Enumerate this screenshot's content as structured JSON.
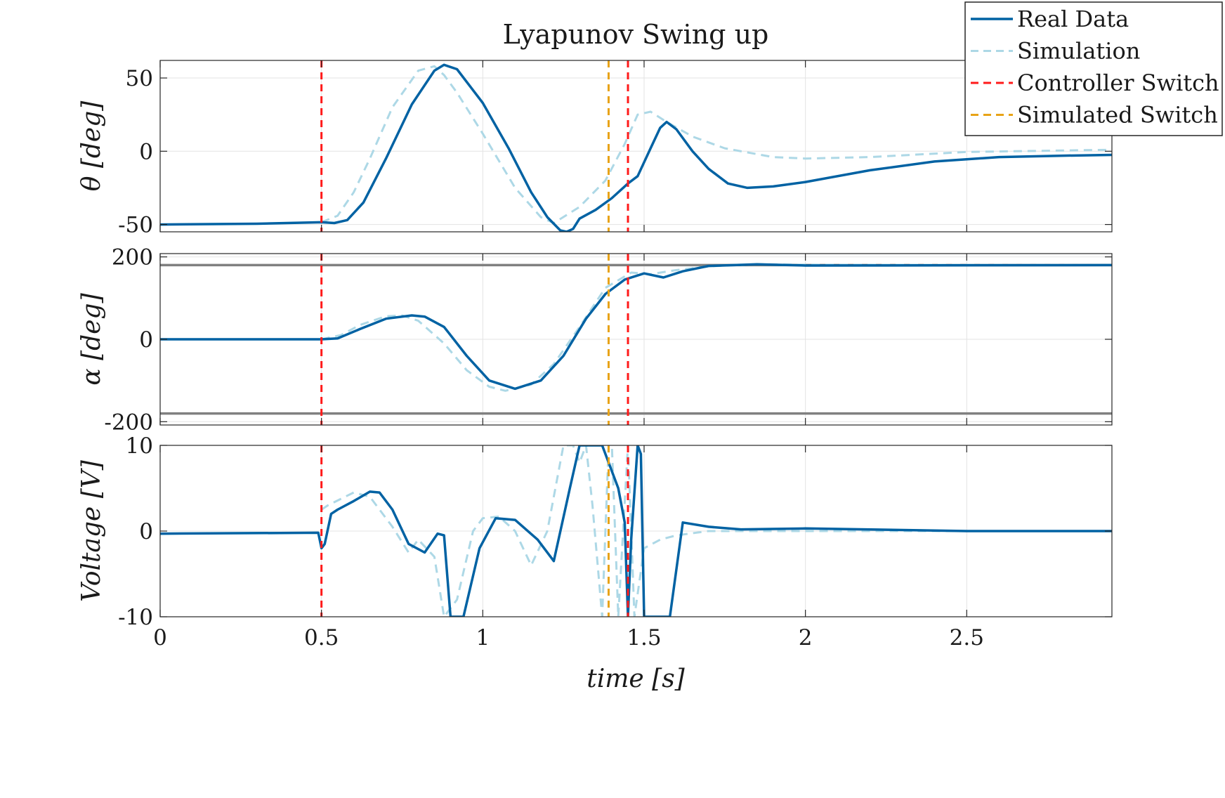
{
  "chart_data": {
    "type": "line",
    "title": "Lyapunov Swing up",
    "xlabel": "time [s]",
    "xlim": [
      0,
      2.95
    ],
    "xticks": [
      0,
      0.5,
      1,
      1.5,
      2,
      2.5
    ],
    "xtick_labels": [
      "0",
      "0.5",
      "1",
      "1.5",
      "2",
      "2.5"
    ],
    "legend": {
      "placement": "top-right",
      "entries": [
        {
          "label": "Real Data",
          "color": "#0062A3",
          "style": "solid"
        },
        {
          "label": "Simulation",
          "color": "#ADD8E6",
          "style": "dashed"
        },
        {
          "label": "Controller Switch",
          "color": "#FF1A1A",
          "style": "dashed"
        },
        {
          "label": "Simulated Switch",
          "color": "#E8A317",
          "style": "dashed"
        }
      ]
    },
    "vertical_lines": [
      {
        "x": 0.5,
        "kind": "controller"
      },
      {
        "x": 1.45,
        "kind": "controller"
      },
      {
        "x": 1.39,
        "kind": "simulated"
      }
    ],
    "grid": true,
    "subplots": [
      {
        "id": "theta",
        "ylabel": "θ [deg]",
        "ylim": [
          -55,
          62
        ],
        "yticks": [
          -50,
          0,
          50
        ],
        "ytick_labels": [
          "-50",
          "0",
          "50"
        ],
        "series": [
          {
            "name": "Real Data",
            "x": [
              0,
              0.3,
              0.5,
              0.54,
              0.58,
              0.63,
              0.7,
              0.78,
              0.85,
              0.88,
              0.92,
              1.0,
              1.08,
              1.15,
              1.2,
              1.24,
              1.26,
              1.28,
              1.3,
              1.35,
              1.4,
              1.45,
              1.48,
              1.52,
              1.55,
              1.57,
              1.6,
              1.65,
              1.7,
              1.76,
              1.82,
              1.9,
              2.0,
              2.2,
              2.4,
              2.6,
              2.8,
              2.95
            ],
            "y": [
              -50,
              -49.5,
              -48.5,
              -49,
              -47,
              -35,
              -5,
              32,
              55,
              59,
              56,
              33,
              2,
              -28,
              -45,
              -54,
              -55,
              -53,
              -46,
              -40,
              -32,
              -22,
              -17,
              2,
              16,
              20,
              15,
              0,
              -12,
              -22,
              -25,
              -24,
              -21,
              -13,
              -7,
              -4,
              -3,
              -2.5
            ]
          },
          {
            "name": "Simulation",
            "x": [
              0.5,
              0.55,
              0.6,
              0.65,
              0.72,
              0.8,
              0.85,
              0.88,
              0.92,
              1.0,
              1.1,
              1.18,
              1.22,
              1.3,
              1.38,
              1.44,
              1.48,
              1.52,
              1.57,
              1.65,
              1.75,
              1.9,
              2.0,
              2.2,
              2.5,
              2.95
            ],
            "y": [
              -48.5,
              -44,
              -28,
              -5,
              30,
              55,
              58,
              52,
              40,
              12,
              -25,
              -45,
              -49,
              -38,
              -20,
              5,
              25,
              27,
              20,
              10,
              2,
              -4,
              -5,
              -4,
              -0.5,
              1
            ]
          }
        ]
      },
      {
        "id": "alpha",
        "ylabel": "α [deg]",
        "ylim": [
          -208,
          208
        ],
        "yticks": [
          -200,
          0,
          200
        ],
        "ytick_labels": [
          "-200",
          "0",
          "200"
        ],
        "limit_lines": [
          -180,
          180
        ],
        "series": [
          {
            "name": "Real Data",
            "x": [
              0,
              0.5,
              0.55,
              0.62,
              0.7,
              0.78,
              0.82,
              0.88,
              0.95,
              1.02,
              1.1,
              1.18,
              1.25,
              1.32,
              1.38,
              1.44,
              1.5,
              1.56,
              1.62,
              1.7,
              1.85,
              2.0,
              2.95
            ],
            "y": [
              0,
              0,
              2,
              25,
              50,
              58,
              55,
              30,
              -40,
              -100,
              -120,
              -100,
              -40,
              50,
              110,
              145,
              160,
              150,
              165,
              178,
              182,
              179,
              180
            ]
          },
          {
            "name": "Simulation",
            "x": [
              0.5,
              0.56,
              0.62,
              0.7,
              0.75,
              0.8,
              0.88,
              0.95,
              1.02,
              1.07,
              1.15,
              1.22,
              1.3,
              1.38,
              1.46,
              1.52,
              1.6,
              1.7,
              1.85,
              2.0,
              2.95
            ],
            "y": [
              0,
              10,
              35,
              56,
              58,
              45,
              -10,
              -75,
              -115,
              -125,
              -110,
              -60,
              30,
              125,
              162,
              158,
              168,
              177,
              182,
              181,
              180
            ]
          }
        ]
      },
      {
        "id": "voltage",
        "ylabel": "Voltage [V]",
        "ylim": [
          -10,
          10
        ],
        "yticks": [
          -10,
          0,
          10
        ],
        "ytick_labels": [
          "-10",
          "0",
          "10"
        ],
        "series": [
          {
            "name": "Real Data",
            "x": [
              0,
              0.49,
              0.5,
              0.51,
              0.53,
              0.55,
              0.6,
              0.65,
              0.68,
              0.72,
              0.77,
              0.82,
              0.86,
              0.88,
              0.9,
              0.94,
              0.94,
              0.99,
              1.04,
              1.1,
              1.17,
              1.22,
              1.27,
              1.3,
              1.3,
              1.37,
              1.42,
              1.44,
              1.45,
              1.46,
              1.48,
              1.49,
              1.5,
              1.52,
              1.52,
              1.58,
              1.62,
              1.7,
              1.8,
              2.0,
              2.5,
              2.95
            ],
            "y": [
              -0.3,
              -0.2,
              -2,
              -1.5,
              2,
              2.5,
              3.5,
              4.6,
              4.5,
              2.5,
              -1.5,
              -2.5,
              -0.3,
              -0.5,
              -10,
              -10,
              -10,
              -2,
              1.5,
              1.3,
              -1,
              -3.5,
              5,
              10,
              10,
              10,
              5,
              1,
              -10,
              -1,
              10,
              9,
              -10,
              -10,
              -10,
              -10,
              1,
              0.5,
              0.2,
              0.3,
              0,
              0
            ]
          },
          {
            "name": "Simulation",
            "x": [
              0.5,
              0.52,
              0.6,
              0.65,
              0.72,
              0.77,
              0.8,
              0.85,
              0.88,
              0.92,
              0.97,
              1.0,
              1.05,
              1.1,
              1.15,
              1.2,
              1.25,
              1.28,
              1.3,
              1.32,
              1.34,
              1.37,
              1.39,
              1.4,
              1.42,
              1.45,
              1.47,
              1.5,
              1.55,
              1.6,
              1.7,
              2.0,
              2.5,
              2.95
            ],
            "y": [
              2.5,
              3,
              4.5,
              4,
              0.5,
              -2.5,
              -1,
              -3,
              -10,
              -8,
              0,
              1.5,
              1.7,
              0,
              -4,
              0,
              10,
              10,
              8,
              10,
              3,
              -10,
              10,
              10,
              -10,
              10,
              -10,
              -2,
              -1,
              -0.5,
              0,
              0,
              0,
              0
            ]
          }
        ]
      }
    ]
  }
}
